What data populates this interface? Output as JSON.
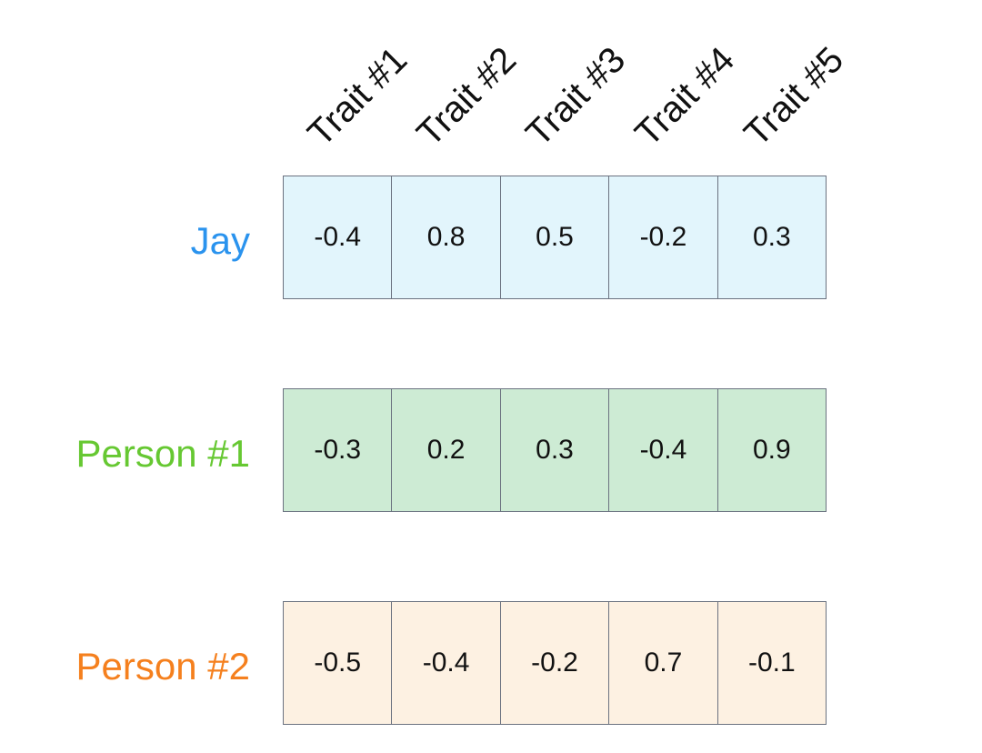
{
  "traits": [
    "Trait #1",
    "Trait #2",
    "Trait #3",
    "Trait #4",
    "Trait #5"
  ],
  "rows": [
    {
      "label": "Jay",
      "label_color": "#2a93ee",
      "fill": "#e2f5fc",
      "values": [
        "-0.4",
        "0.8",
        "0.5",
        "-0.2",
        "0.3"
      ]
    },
    {
      "label": "Person #1",
      "label_color": "#66c832",
      "fill": "#cdebd4",
      "values": [
        "-0.3",
        "0.2",
        "0.3",
        "-0.4",
        "0.9"
      ]
    },
    {
      "label": "Person #2",
      "label_color": "#f5801e",
      "fill": "#fdf1e2",
      "values": [
        "-0.5",
        "-0.4",
        "-0.2",
        "0.7",
        "-0.1"
      ]
    }
  ]
}
